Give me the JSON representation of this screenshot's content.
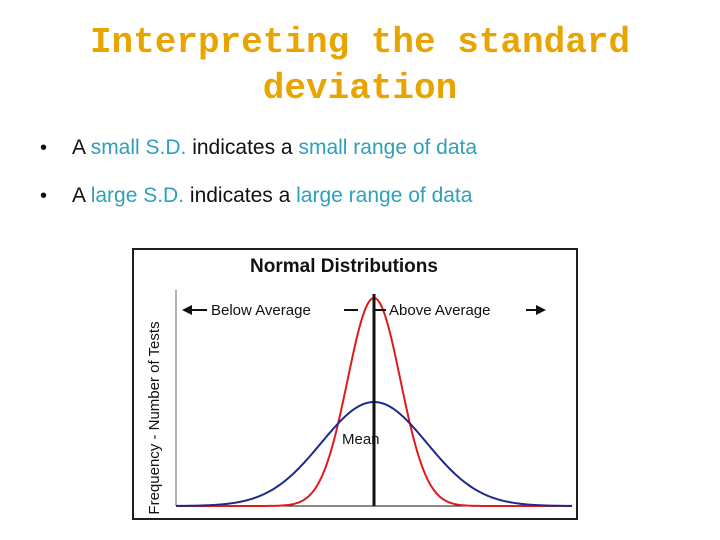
{
  "slide": {
    "title_line1": "Interpreting the standard",
    "title_line2": "deviation",
    "title_color": "#e8a400",
    "highlight_color": "#2e9fbd",
    "bullets": [
      {
        "p1": "A ",
        "h1": "small S.D.",
        "p2": " indicates a ",
        "h2": "small range of data"
      },
      {
        "p1": "A ",
        "h1": "large S.D.",
        "p2": " indicates a ",
        "h2": "large range of data"
      }
    ]
  },
  "chart_data": {
    "type": "line",
    "title": "Normal Distributions",
    "ylabel": "Frequency - Number of Tests",
    "xlabel": "",
    "grid": false,
    "annotations": {
      "below": "Below Average",
      "above": "Above Average",
      "mean": "Mean"
    },
    "mean_x": 0,
    "x_range": [
      -4.5,
      4.5
    ],
    "series": [
      {
        "color": "#e01b1b",
        "mean": 0,
        "sd": 0.6,
        "peak": 1.0
      },
      {
        "color": "#1c2a8a",
        "mean": 0,
        "sd": 1.2,
        "peak": 0.5
      }
    ]
  }
}
